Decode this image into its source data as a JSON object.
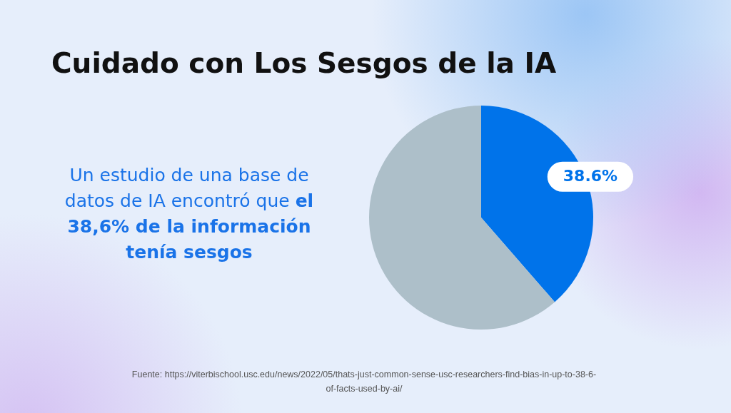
{
  "chart_data": {
    "type": "pie",
    "title": "Cuidado con Los Sesgos de la IA",
    "categories": [
      null,
      null
    ],
    "values": [
      38.6,
      61.4
    ],
    "colors": [
      "#0073ea",
      "#adbfc9"
    ],
    "value_labels": [
      "38.6%",
      null
    ],
    "annotations": [
      "Un estudio de una base de datos de IA encontró",
      "que el 38,6% de la información tenía sesgos",
      "Fuente: https://viterbischool.usc.edu/news/2022/05/thats-just-common-sense-usc-researchers-find-bias-in-up-to-38-6-of-facts-used-by-ai/"
    ]
  }
}
